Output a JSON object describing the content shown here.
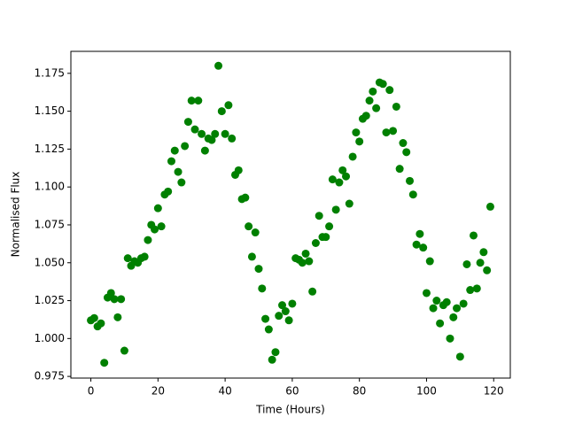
{
  "chart_data": {
    "type": "scatter",
    "x_label": "Time (Hours)",
    "y_label": "Normalised Flux",
    "color": "#008000",
    "x": [
      0,
      1,
      2,
      3,
      4,
      5,
      6,
      7,
      8,
      9,
      10,
      11,
      12,
      13,
      14,
      15,
      16,
      17,
      18,
      19,
      20,
      21,
      22,
      23,
      24,
      25,
      26,
      27,
      28,
      29,
      30,
      31,
      32,
      33,
      34,
      35,
      36,
      37,
      38,
      39,
      40,
      41,
      42,
      43,
      44,
      45,
      46,
      47,
      48,
      49,
      50,
      51,
      52,
      53,
      54,
      55,
      56,
      57,
      58,
      59,
      60,
      61,
      62,
      63,
      64,
      65,
      66,
      67,
      68,
      69,
      70,
      71,
      72,
      73,
      74,
      75,
      76,
      77,
      78,
      79,
      80,
      81,
      82,
      83,
      84,
      85,
      86,
      87,
      88,
      89,
      90,
      91,
      92,
      93,
      94,
      95,
      96,
      97,
      98,
      99,
      100,
      101,
      102,
      103,
      104,
      105,
      106,
      107,
      108,
      109,
      110,
      111,
      112,
      113,
      114,
      115,
      116,
      117,
      118,
      119
    ],
    "values": [
      1.012,
      1.0135,
      1.008,
      1.01,
      0.984,
      1.027,
      1.03,
      1.026,
      1.014,
      1.026,
      0.992,
      1.053,
      1.048,
      1.051,
      1.05,
      1.053,
      1.054,
      1.065,
      1.075,
      1.072,
      1.086,
      1.074,
      1.095,
      1.097,
      1.117,
      1.124,
      1.11,
      1.103,
      1.127,
      1.143,
      1.157,
      1.138,
      1.157,
      1.135,
      1.124,
      1.132,
      1.131,
      1.135,
      1.18,
      1.15,
      1.135,
      1.154,
      1.132,
      1.108,
      1.111,
      1.092,
      1.093,
      1.074,
      1.054,
      1.07,
      1.046,
      1.033,
      1.013,
      1.006,
      0.986,
      0.991,
      1.015,
      1.022,
      1.018,
      1.012,
      1.023,
      1.053,
      1.052,
      1.05,
      1.056,
      1.051,
      1.031,
      1.063,
      1.081,
      1.067,
      1.067,
      1.074,
      1.105,
      1.085,
      1.103,
      1.111,
      1.107,
      1.089,
      1.12,
      1.136,
      1.13,
      1.145,
      1.147,
      1.157,
      1.163,
      1.152,
      1.169,
      1.168,
      1.136,
      1.164,
      1.137,
      1.153,
      1.112,
      1.129,
      1.123,
      1.104,
      1.095,
      1.062,
      1.069,
      1.06,
      1.03,
      1.051,
      1.02,
      1.025,
      1.01,
      1.022,
      1.024,
      1.0,
      1.014,
      1.02,
      0.988,
      1.023,
      1.049,
      1.032,
      1.068,
      1.033,
      1.05,
      1.057,
      1.045,
      1.087
    ],
    "xlim": [
      -5.95,
      124.95
    ],
    "xticks": [
      0,
      20,
      40,
      60,
      80,
      100,
      120
    ],
    "ylim": [
      0.9739,
      1.1895
    ],
    "yticks": [
      0.975,
      {
        "value": 1.0,
        "label": "1.000"
      },
      1.025,
      {
        "value": 1.05,
        "label": "1.050"
      },
      1.075,
      {
        "value": 1.1,
        "label": "1.100"
      },
      1.125,
      {
        "value": 1.15,
        "label": "1.150"
      },
      1.175
    ],
    "grid": false
  }
}
